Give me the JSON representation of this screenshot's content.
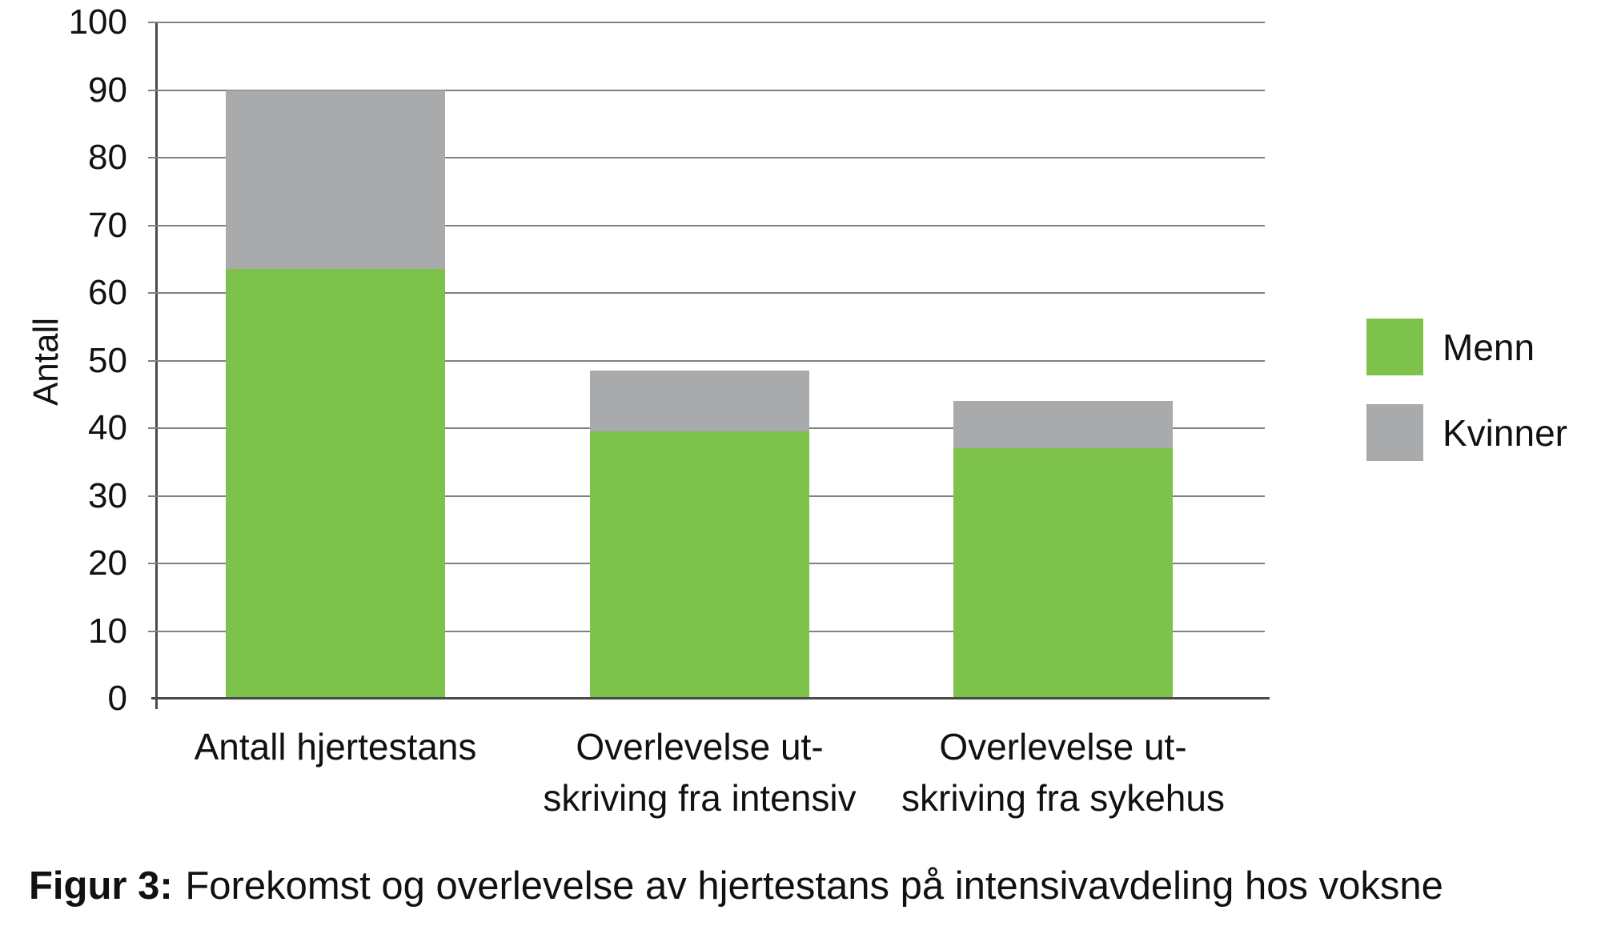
{
  "figure": {
    "caption_prefix": "Figur 3:",
    "caption_text": "Forekomst og overlevelse av hjertestans på intensivavdeling hos voksne"
  },
  "chart_data": {
    "type": "bar",
    "stacked": true,
    "title": "",
    "ylabel": "Antall",
    "xlabel": "",
    "ylim": [
      0,
      100
    ],
    "ytick_step": 10,
    "ytick_labels": [
      "100",
      "90",
      "80",
      "70",
      "60",
      "50",
      "40",
      "30",
      "20",
      "10",
      "0"
    ],
    "grid": true,
    "legend_position": "right",
    "categories": [
      "Antall hjertestans",
      "Overlevelse utskriving fra intensiv",
      "Overlevelse utskriving fra sykehus"
    ],
    "category_label_lines": [
      [
        "Antall hjertestans"
      ],
      [
        "Overlevelse ut-",
        "skriving fra intensiv"
      ],
      [
        "Overlevelse ut-",
        "skriving fra sykehus"
      ]
    ],
    "series": [
      {
        "name": "Menn",
        "color": "#7dc24a",
        "values": [
          63.5,
          39.5,
          37
        ]
      },
      {
        "name": "Kvinner",
        "color": "#a8aaac",
        "values": [
          26.5,
          9,
          7
        ]
      }
    ],
    "stack_totals": [
      90,
      48.5,
      44
    ]
  }
}
